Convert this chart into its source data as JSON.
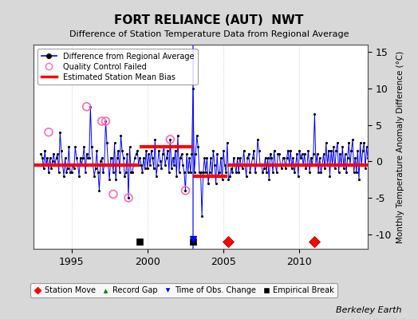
{
  "title": "FORT RELIANCE (AUT)  NWT",
  "subtitle": "Difference of Station Temperature Data from Regional Average",
  "ylabel": "Monthly Temperature Anomaly Difference (°C)",
  "xlabel_bottom": "Berkeley Earth",
  "ylim": [
    -12,
    16
  ],
  "yticks": [
    -10,
    -5,
    0,
    5,
    10,
    15
  ],
  "xlim": [
    1992.5,
    2014.5
  ],
  "bg_color": "#d8d8d8",
  "plot_bg_color": "#ffffff",
  "grid_color": "#cccccc",
  "mean_bias_segments": [
    {
      "x_start": 1992.5,
      "x_end": 1999.5,
      "y": -0.5
    },
    {
      "x_start": 1999.5,
      "x_end": 2003.0,
      "y": 2.0
    },
    {
      "x_start": 2003.0,
      "x_end": 2005.25,
      "y": -2.0
    },
    {
      "x_start": 2005.25,
      "x_end": 2014.5,
      "y": -0.5
    }
  ],
  "station_moves": [
    2005.33,
    2011.0
  ],
  "record_gaps": [],
  "obs_changes": [
    2003.0
  ],
  "empirical_breaks": [
    1999.5,
    2003.0
  ],
  "qc_failed_x": [
    1993.5,
    1996.0,
    1997.0,
    1997.25,
    1997.75,
    1998.75,
    2001.5,
    2002.5
  ],
  "qc_failed_y": [
    4.0,
    7.5,
    5.5,
    5.5,
    -4.5,
    -5.0,
    3.0,
    -4.0
  ],
  "event_y": -11.0,
  "data_x": [
    1993.0,
    1993.083,
    1993.167,
    1993.25,
    1993.333,
    1993.417,
    1993.5,
    1993.583,
    1993.667,
    1993.75,
    1993.833,
    1993.917,
    1994.0,
    1994.083,
    1994.167,
    1994.25,
    1994.333,
    1994.417,
    1994.5,
    1994.583,
    1994.667,
    1994.75,
    1994.833,
    1994.917,
    1995.0,
    1995.083,
    1995.167,
    1995.25,
    1995.333,
    1995.417,
    1995.5,
    1995.583,
    1995.667,
    1995.75,
    1995.833,
    1995.917,
    1996.0,
    1996.083,
    1996.167,
    1996.25,
    1996.333,
    1996.417,
    1996.5,
    1996.583,
    1996.667,
    1996.75,
    1996.833,
    1996.917,
    1997.0,
    1997.083,
    1997.167,
    1997.25,
    1997.333,
    1997.417,
    1997.5,
    1997.583,
    1997.667,
    1997.75,
    1997.833,
    1997.917,
    1998.0,
    1998.083,
    1998.167,
    1998.25,
    1998.333,
    1998.417,
    1998.5,
    1998.583,
    1998.667,
    1998.75,
    1998.833,
    1998.917,
    1999.0,
    1999.083,
    1999.167,
    1999.25,
    1999.333,
    1999.417,
    1999.5,
    1999.583,
    1999.667,
    1999.75,
    1999.833,
    1999.917,
    2000.0,
    2000.083,
    2000.167,
    2000.25,
    2000.333,
    2000.417,
    2000.5,
    2000.583,
    2000.667,
    2000.75,
    2000.833,
    2000.917,
    2001.0,
    2001.083,
    2001.167,
    2001.25,
    2001.333,
    2001.417,
    2001.5,
    2001.583,
    2001.667,
    2001.75,
    2001.833,
    2001.917,
    2002.0,
    2002.083,
    2002.167,
    2002.25,
    2002.333,
    2002.417,
    2002.5,
    2002.583,
    2002.667,
    2002.75,
    2002.833,
    2002.917,
    2003.0,
    2003.083,
    2003.167,
    2003.25,
    2003.333,
    2003.417,
    2003.5,
    2003.583,
    2003.667,
    2003.75,
    2003.833,
    2003.917,
    2004.0,
    2004.083,
    2004.167,
    2004.25,
    2004.333,
    2004.417,
    2004.5,
    2004.583,
    2004.667,
    2004.75,
    2004.833,
    2004.917,
    2005.0,
    2005.083,
    2005.167,
    2005.25,
    2005.333,
    2005.417,
    2005.5,
    2005.583,
    2005.667,
    2005.75,
    2005.833,
    2005.917,
    2006.0,
    2006.083,
    2006.167,
    2006.25,
    2006.333,
    2006.417,
    2006.5,
    2006.583,
    2006.667,
    2006.75,
    2006.833,
    2006.917,
    2007.0,
    2007.083,
    2007.167,
    2007.25,
    2007.333,
    2007.417,
    2007.5,
    2007.583,
    2007.667,
    2007.75,
    2007.833,
    2007.917,
    2008.0,
    2008.083,
    2008.167,
    2008.25,
    2008.333,
    2008.417,
    2008.5,
    2008.583,
    2008.667,
    2008.75,
    2008.833,
    2008.917,
    2009.0,
    2009.083,
    2009.167,
    2009.25,
    2009.333,
    2009.417,
    2009.5,
    2009.583,
    2009.667,
    2009.75,
    2009.833,
    2009.917,
    2010.0,
    2010.083,
    2010.167,
    2010.25,
    2010.333,
    2010.417,
    2010.5,
    2010.583,
    2010.667,
    2010.75,
    2010.833,
    2010.917,
    2011.0,
    2011.083,
    2011.167,
    2011.25,
    2011.333,
    2011.417,
    2011.5,
    2011.583,
    2011.667,
    2011.75,
    2011.833,
    2011.917,
    2012.0,
    2012.083,
    2012.167,
    2012.25,
    2012.333,
    2012.417,
    2012.5,
    2012.583,
    2012.667,
    2012.75,
    2012.833,
    2012.917,
    2013.0,
    2013.083,
    2013.167,
    2013.25,
    2013.333,
    2013.417,
    2013.5,
    2013.583,
    2013.667,
    2013.75,
    2013.833,
    2013.917,
    2014.0,
    2014.083,
    2014.167,
    2014.25,
    2014.333,
    2014.417,
    2014.5
  ],
  "data_y": [
    1.0,
    0.5,
    -1.0,
    1.5,
    -0.5,
    0.5,
    -1.5,
    0.5,
    -1.0,
    0.0,
    1.0,
    -0.5,
    0.5,
    1.0,
    -1.5,
    4.0,
    1.5,
    -0.5,
    -2.0,
    0.5,
    -1.5,
    -1.0,
    2.0,
    -1.5,
    -1.5,
    -0.5,
    -1.0,
    2.0,
    0.5,
    -0.5,
    -2.0,
    0.5,
    -0.5,
    0.5,
    2.0,
    -1.5,
    1.0,
    0.5,
    0.5,
    7.5,
    2.0,
    -0.5,
    -2.0,
    -1.0,
    1.5,
    -1.5,
    -4.0,
    0.0,
    0.5,
    -1.5,
    -0.5,
    5.5,
    2.5,
    -0.5,
    -2.5,
    0.5,
    0.5,
    -1.5,
    2.5,
    -2.5,
    0.5,
    1.5,
    -1.5,
    3.5,
    1.5,
    0.5,
    -2.0,
    -1.5,
    1.0,
    -5.0,
    2.0,
    -1.5,
    -1.5,
    -0.5,
    0.5,
    1.0,
    1.5,
    -0.5,
    0.5,
    -0.5,
    -1.5,
    0.5,
    -1.0,
    1.5,
    -1.0,
    1.0,
    -0.5,
    1.5,
    0.5,
    -1.0,
    3.0,
    -2.0,
    -0.5,
    1.5,
    0.0,
    -1.0,
    1.0,
    2.0,
    -0.5,
    0.5,
    1.5,
    -1.5,
    3.0,
    -1.0,
    0.5,
    -0.5,
    1.5,
    -2.0,
    3.5,
    -1.5,
    0.5,
    1.0,
    -0.5,
    -1.5,
    -4.0,
    1.0,
    -1.5,
    0.5,
    -1.5,
    1.0,
    10.0,
    -1.5,
    1.0,
    3.5,
    2.0,
    -1.5,
    -1.5,
    -7.5,
    -1.5,
    0.5,
    -1.5,
    0.5,
    -3.0,
    -1.5,
    0.5,
    -2.0,
    1.5,
    -0.5,
    -3.0,
    1.0,
    -2.0,
    -1.5,
    0.5,
    -2.5,
    1.5,
    -0.5,
    -1.5,
    2.5,
    -2.5,
    -2.0,
    -1.0,
    -1.5,
    0.5,
    -0.5,
    -1.5,
    0.5,
    -1.5,
    0.5,
    -0.5,
    -1.0,
    1.5,
    -0.5,
    -2.0,
    0.5,
    1.0,
    -1.5,
    -0.5,
    0.5,
    1.5,
    -1.5,
    -0.5,
    3.0,
    1.5,
    -0.5,
    -0.5,
    -1.5,
    -1.0,
    0.5,
    -1.5,
    0.5,
    -2.5,
    1.0,
    0.5,
    -1.5,
    1.5,
    -0.5,
    -1.5,
    1.0,
    1.0,
    -0.5,
    -1.0,
    0.5,
    0.5,
    -1.0,
    0.5,
    1.5,
    -0.5,
    1.5,
    -1.0,
    0.5,
    -1.5,
    -0.5,
    1.0,
    -2.0,
    1.5,
    0.5,
    1.0,
    -0.5,
    1.0,
    -1.0,
    -0.5,
    1.5,
    -1.5,
    0.5,
    -0.5,
    1.0,
    6.5,
    -0.5,
    1.0,
    -1.5,
    0.5,
    -1.5,
    -0.5,
    1.0,
    -1.0,
    2.5,
    -0.5,
    1.5,
    -2.0,
    1.5,
    -0.5,
    2.0,
    -1.0,
    1.5,
    2.5,
    -1.5,
    1.0,
    -0.5,
    2.0,
    -1.0,
    1.0,
    -1.5,
    0.5,
    2.5,
    -0.5,
    1.5,
    3.0,
    -1.5,
    0.5,
    -1.5,
    1.5,
    -2.5,
    2.5,
    -0.5,
    1.5,
    2.5,
    -1.0,
    2.0,
    0.5
  ]
}
